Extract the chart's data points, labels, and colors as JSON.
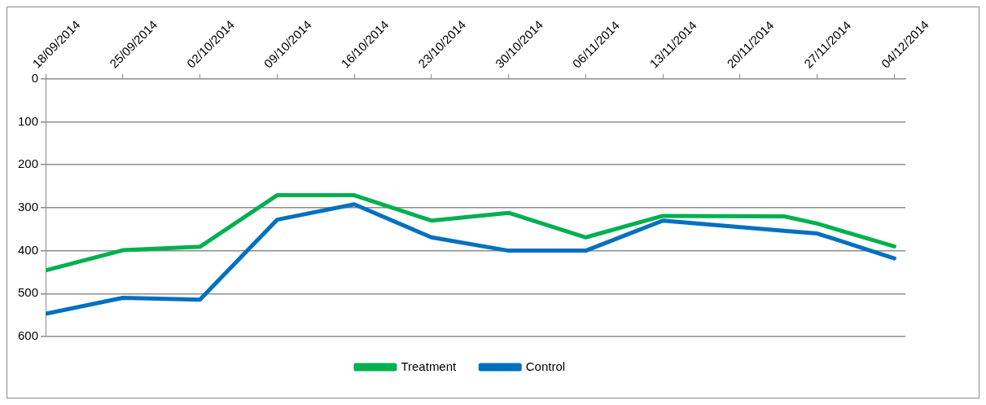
{
  "chart_data": {
    "type": "line",
    "x": [
      "2014-09-18",
      "2014-09-25",
      "2014-10-02",
      "2014-10-09",
      "2014-10-16",
      "2014-10-23",
      "2014-10-30",
      "2014-11-06",
      "2014-11-13",
      "2014-11-24",
      "2014-11-27",
      "2014-12-04"
    ],
    "series": [
      {
        "name": "Treatment",
        "color": "#00b050",
        "values": [
          446,
          399,
          391,
          271,
          271,
          330,
          312,
          369,
          319,
          320,
          337,
          390
        ]
      },
      {
        "name": "Control",
        "color": "#0070c0",
        "values": [
          547,
          510,
          514,
          328,
          292,
          369,
          400,
          400,
          330,
          354,
          360,
          418
        ]
      }
    ],
    "xlim": [
      "2014-09-18",
      "2014-12-05"
    ],
    "xticks": [
      {
        "value": "2014-09-18",
        "label": "18/09/2014"
      },
      {
        "value": "2014-09-25",
        "label": "25/09/2014"
      },
      {
        "value": "2014-10-02",
        "label": "02/10/2014"
      },
      {
        "value": "2014-10-09",
        "label": "09/10/2014"
      },
      {
        "value": "2014-10-16",
        "label": "16/10/2014"
      },
      {
        "value": "2014-10-23",
        "label": "23/10/2014"
      },
      {
        "value": "2014-10-30",
        "label": "30/10/2014"
      },
      {
        "value": "2014-11-06",
        "label": "06/11/2014"
      },
      {
        "value": "2014-11-13",
        "label": "13/11/2014"
      },
      {
        "value": "2014-11-20",
        "label": "20/11/2014"
      },
      {
        "value": "2014-11-27",
        "label": "27/11/2014"
      },
      {
        "value": "2014-12-04",
        "label": "04/12/2014"
      }
    ],
    "ylim": [
      600,
      0
    ],
    "yticks": [
      0,
      100,
      200,
      300,
      400,
      500,
      600
    ],
    "grid": "y",
    "legend": "bottom",
    "marker": "none",
    "line_style": "solid"
  }
}
